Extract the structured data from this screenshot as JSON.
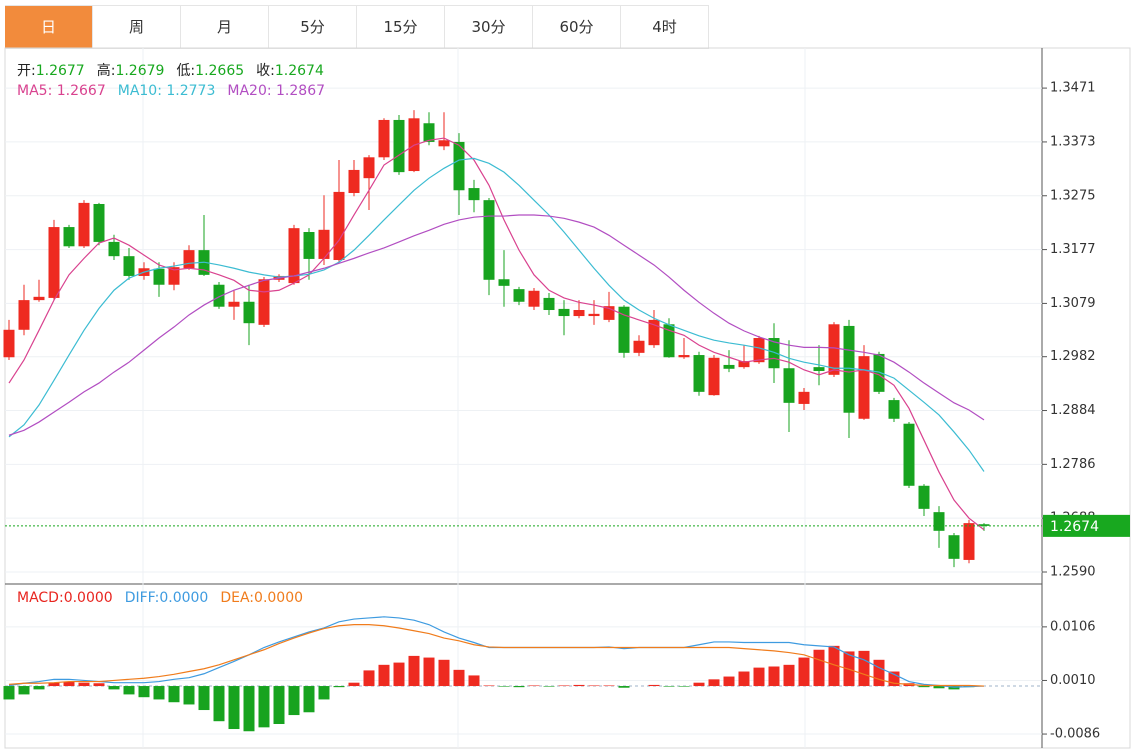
{
  "tabs": {
    "items": [
      "日",
      "周",
      "月",
      "5分",
      "15分",
      "30分",
      "60分",
      "4时"
    ],
    "active": 0
  },
  "chart_data": [
    {
      "type": "candlestick",
      "quote_labels": [
        "开:",
        "高:",
        "低:",
        "收:"
      ],
      "up_color": "#ee2a20",
      "down_color": "#17a31f",
      "last_color": "#18a81f",
      "ylim": [
        1.257,
        1.3544
      ],
      "yticks": [
        1.3471,
        1.3373,
        1.3275,
        1.3177,
        1.3079,
        1.2982,
        1.2884,
        1.2786,
        1.2688,
        {
          "value": 1.259,
          "label": "1.2590"
        }
      ],
      "grid": true,
      "open": [
        1.2981,
        1.3031,
        1.3085,
        1.3089,
        1.3218,
        1.3183,
        1.326,
        1.3191,
        1.3165,
        1.3129,
        1.3142,
        1.3113,
        1.3143,
        1.3176,
        1.3113,
        1.3073,
        1.3082,
        1.304,
        1.3122,
        1.3116,
        1.3209,
        1.316,
        1.3158,
        1.328,
        1.3307,
        1.3345,
        1.3413,
        1.332,
        1.3407,
        1.3365,
        1.3373,
        1.3289,
        1.3267,
        1.3123,
        1.3105,
        1.3073,
        1.3089,
        1.3069,
        1.3056,
        1.3056,
        1.3049,
        1.3073,
        1.2989,
        1.3003,
        1.3041,
        1.2981,
        1.2985,
        1.2912,
        1.2967,
        1.2963,
        1.2972,
        1.3016,
        1.2961,
        1.2896,
        1.2963,
        1.2949,
        1.3038,
        1.2869,
        1.2987,
        1.2903,
        1.286,
        1.2747,
        1.2699,
        1.2657,
        1.2612,
        1.2677
      ],
      "high": [
        1.3049,
        1.3113,
        1.3122,
        1.3231,
        1.3222,
        1.3267,
        1.3262,
        1.3204,
        1.318,
        1.3154,
        1.3154,
        1.3154,
        1.3185,
        1.324,
        1.3118,
        1.3103,
        1.3113,
        1.3127,
        1.3132,
        1.3222,
        1.3216,
        1.3276,
        1.334,
        1.334,
        1.3349,
        1.3416,
        1.3422,
        1.3431,
        1.3427,
        1.3427,
        1.3389,
        1.3304,
        1.3271,
        1.3176,
        1.3109,
        1.3107,
        1.3098,
        1.3085,
        1.3085,
        1.3085,
        1.31,
        1.3076,
        1.3021,
        1.3067,
        1.3052,
        1.3016,
        1.2991,
        1.2985,
        1.2994,
        1.3003,
        1.302,
        1.3043,
        1.3012,
        1.2925,
        1.3003,
        1.3045,
        1.3049,
        1.3003,
        1.2991,
        1.2907,
        1.2863,
        1.275,
        1.271,
        1.2661,
        1.2685,
        1.2679
      ],
      "low": [
        1.2976,
        1.3021,
        1.3082,
        1.3085,
        1.318,
        1.318,
        1.3185,
        1.3158,
        1.3122,
        1.3122,
        1.3091,
        1.3103,
        1.314,
        1.3129,
        1.3069,
        1.3049,
        1.3003,
        1.3036,
        1.3118,
        1.3113,
        1.3122,
        1.3149,
        1.3154,
        1.3274,
        1.3249,
        1.334,
        1.3313,
        1.3318,
        1.3367,
        1.3358,
        1.324,
        1.3245,
        1.3094,
        1.3073,
        1.3076,
        1.3067,
        1.3058,
        1.3021,
        1.3052,
        1.304,
        1.3045,
        1.298,
        1.2983,
        1.2998,
        1.298,
        1.2978,
        1.2911,
        1.2911,
        1.2954,
        1.296,
        1.2969,
        1.2934,
        1.2845,
        1.2885,
        1.293,
        1.2945,
        1.2834,
        1.2867,
        1.2914,
        1.2863,
        1.2743,
        1.2692,
        1.2634,
        1.2599,
        1.2606,
        1.2665
      ],
      "close": [
        1.3031,
        1.3085,
        1.3091,
        1.3218,
        1.3183,
        1.3262,
        1.3191,
        1.3165,
        1.3129,
        1.3143,
        1.3113,
        1.3145,
        1.3176,
        1.3131,
        1.3073,
        1.3082,
        1.3043,
        1.3123,
        1.3129,
        1.3216,
        1.316,
        1.3213,
        1.3282,
        1.3322,
        1.3345,
        1.3413,
        1.3318,
        1.3416,
        1.3373,
        1.3376,
        1.3285,
        1.3267,
        1.3122,
        1.3111,
        1.3082,
        1.3102,
        1.3067,
        1.3056,
        1.3067,
        1.306,
        1.3074,
        1.2989,
        1.3011,
        1.3049,
        1.2981,
        1.2985,
        1.2918,
        1.298,
        1.296,
        1.2974,
        1.3016,
        1.2961,
        1.2898,
        1.2918,
        1.2956,
        1.3041,
        1.288,
        1.2983,
        1.2918,
        1.2869,
        1.2747,
        1.2705,
        1.2665,
        1.2614,
        1.2679,
        1.2674
      ],
      "series": [
        {
          "name": "MA5:",
          "color": "#d9428f",
          "values": [
            1.2934,
            1.2976,
            1.303,
            1.3085,
            1.3131,
            1.3161,
            1.3189,
            1.3198,
            1.3185,
            1.3167,
            1.3149,
            1.314,
            1.3143,
            1.314,
            1.3131,
            1.3121,
            1.3103,
            1.31,
            1.3103,
            1.3116,
            1.3131,
            1.3161,
            1.3194,
            1.324,
            1.3285,
            1.3331,
            1.3349,
            1.3367,
            1.3376,
            1.338,
            1.3367,
            1.334,
            1.3294,
            1.3231,
            1.3176,
            1.3131,
            1.3103,
            1.3089,
            1.3081,
            1.3076,
            1.307,
            1.3058,
            1.3049,
            1.304,
            1.303,
            1.3021,
            1.3003,
            1.299,
            1.2981,
            1.2972,
            1.2976,
            1.2979,
            1.2972,
            1.2958,
            1.2949,
            1.2958,
            1.2954,
            1.2958,
            1.2949,
            1.293,
            1.2888,
            1.283,
            1.2772,
            1.2721,
            1.2688,
            1.2667
          ]
        },
        {
          "name": "MA10:",
          "color": "#3cbcd2",
          "values": [
            1.2836,
            1.2858,
            1.2894,
            1.2939,
            1.2985,
            1.303,
            1.307,
            1.3103,
            1.3125,
            1.3136,
            1.3143,
            1.3147,
            1.3152,
            1.3154,
            1.3149,
            1.3143,
            1.3136,
            1.3131,
            1.3127,
            1.3129,
            1.3132,
            1.314,
            1.3154,
            1.3176,
            1.3203,
            1.3231,
            1.3258,
            1.3285,
            1.3307,
            1.3325,
            1.334,
            1.3343,
            1.3334,
            1.3318,
            1.3294,
            1.3267,
            1.324,
            1.3209,
            1.3176,
            1.3143,
            1.3112,
            1.3085,
            1.3067,
            1.3052,
            1.304,
            1.303,
            1.302,
            1.3012,
            1.3007,
            1.3003,
            1.2998,
            1.299,
            1.2979,
            1.2972,
            1.2967,
            1.2961,
            1.2961,
            1.2958,
            1.2954,
            1.2943,
            1.2921,
            1.2899,
            1.2876,
            1.2845,
            1.2812,
            1.2773
          ]
        },
        {
          "name": "MA20:",
          "color": "#b24ec2",
          "values": [
            1.2839,
            1.2848,
            1.2863,
            1.2881,
            1.2899,
            1.2918,
            1.2934,
            1.2954,
            1.2972,
            1.2994,
            1.3016,
            1.3036,
            1.3058,
            1.3076,
            1.3091,
            1.3103,
            1.3112,
            1.3121,
            1.3125,
            1.3129,
            1.3136,
            1.3143,
            1.3152,
            1.3161,
            1.3171,
            1.318,
            1.3191,
            1.3202,
            1.3212,
            1.3223,
            1.3231,
            1.3236,
            1.3238,
            1.3238,
            1.324,
            1.324,
            1.3238,
            1.3234,
            1.3227,
            1.3218,
            1.3203,
            1.3185,
            1.3167,
            1.3149,
            1.3127,
            1.3103,
            1.3081,
            1.3061,
            1.3043,
            1.3029,
            1.3018,
            1.3009,
            1.3003,
            1.2999,
            1.2999,
            1.2998,
            1.2994,
            1.299,
            1.2985,
            1.2972,
            1.2954,
            1.2934,
            1.2916,
            1.2898,
            1.2885,
            1.2867
          ]
        }
      ]
    },
    {
      "type": "macd",
      "ylim": [
        -0.0111,
        0.0181
      ],
      "yticks": [
        0.0106,
        {
          "value": 0.001,
          "label": "0.0010"
        },
        -0.0086
      ],
      "grid": true,
      "series": [
        {
          "name": "MACD:",
          "kind": "bar",
          "up_color": "#ee2a20",
          "down_color": "#17a31f",
          "color": "#e8251f",
          "latest": {
            "value": 0,
            "label": "0.0000"
          },
          "values": [
            -0.0024,
            -0.0015,
            -0.0006,
            0.0006,
            0.0008,
            0.0006,
            0.0005,
            -0.0006,
            -0.0015,
            -0.002,
            -0.0024,
            -0.0029,
            -0.0033,
            -0.0043,
            -0.0063,
            -0.0077,
            -0.0081,
            -0.0074,
            -0.0068,
            -0.0052,
            -0.0047,
            -0.0024,
            -0.0002,
            0.0006,
            0.0028,
            0.0038,
            0.0042,
            0.0054,
            0.0051,
            0.0047,
            0.0029,
            0.0019,
            0.0001,
            -0.0001,
            -0.0002,
            0.0001,
            -0.0001,
            0.0001,
            0.0002,
            0.0001,
            0.0001,
            -0.0003,
            0,
            0.0002,
            -0.0001,
            -0.0001,
            0.0006,
            0.0012,
            0.0017,
            0.0026,
            0.0033,
            0.0035,
            0.0038,
            0.0051,
            0.0065,
            0.0072,
            0.0062,
            0.0063,
            0.0047,
            0.0026,
            0.0005,
            -0.0002,
            -0.0004,
            -0.0006,
            -0.0002,
            0
          ]
        },
        {
          "name": "DIFF:",
          "kind": "line",
          "color": "#3e9be0",
          "latest": {
            "value": 0,
            "label": "0.0000"
          },
          "values": [
            0.0001,
            0.0005,
            0.0008,
            0.0012,
            0.0012,
            0.001,
            0.0008,
            0.0006,
            0.0006,
            0.0006,
            0.0008,
            0.0012,
            0.0015,
            0.0022,
            0.0033,
            0.0044,
            0.0056,
            0.0069,
            0.0079,
            0.0088,
            0.0097,
            0.0104,
            0.0115,
            0.012,
            0.0122,
            0.0124,
            0.0122,
            0.0118,
            0.011,
            0.0097,
            0.0086,
            0.0078,
            0.0069,
            0.0069,
            0.0069,
            0.0069,
            0.0069,
            0.0069,
            0.0069,
            0.0069,
            0.007,
            0.0067,
            0.0069,
            0.0069,
            0.0069,
            0.0069,
            0.0074,
            0.0079,
            0.0079,
            0.0078,
            0.0078,
            0.0078,
            0.0078,
            0.0074,
            0.0072,
            0.007,
            0.0056,
            0.0047,
            0.0033,
            0.0021,
            0.0008,
            0.0003,
            0.0001,
            -0.0002,
            -0.0001,
            0
          ]
        },
        {
          "name": "DEA:",
          "kind": "line",
          "color": "#f07c1c",
          "latest": {
            "value": 0,
            "label": "0.0000"
          },
          "values": [
            0.0003,
            0.0005,
            0.0005,
            0.0006,
            0.0008,
            0.0008,
            0.0008,
            0.001,
            0.0012,
            0.0014,
            0.0017,
            0.0021,
            0.0026,
            0.0031,
            0.0038,
            0.0047,
            0.0056,
            0.0065,
            0.0076,
            0.0086,
            0.0095,
            0.0103,
            0.0108,
            0.011,
            0.011,
            0.0108,
            0.0104,
            0.0099,
            0.0094,
            0.0086,
            0.0081,
            0.0074,
            0.007,
            0.0069,
            0.0069,
            0.0069,
            0.0069,
            0.0069,
            0.0069,
            0.0069,
            0.0069,
            0.0069,
            0.0069,
            0.0069,
            0.0069,
            0.0069,
            0.0069,
            0.0069,
            0.0069,
            0.0067,
            0.0065,
            0.0063,
            0.006,
            0.0056,
            0.0047,
            0.0038,
            0.003,
            0.0021,
            0.0012,
            0.0005,
            0.0003,
            0.0001,
            0.0001,
            0.0001,
            0.0001,
            0
          ]
        }
      ]
    }
  ]
}
